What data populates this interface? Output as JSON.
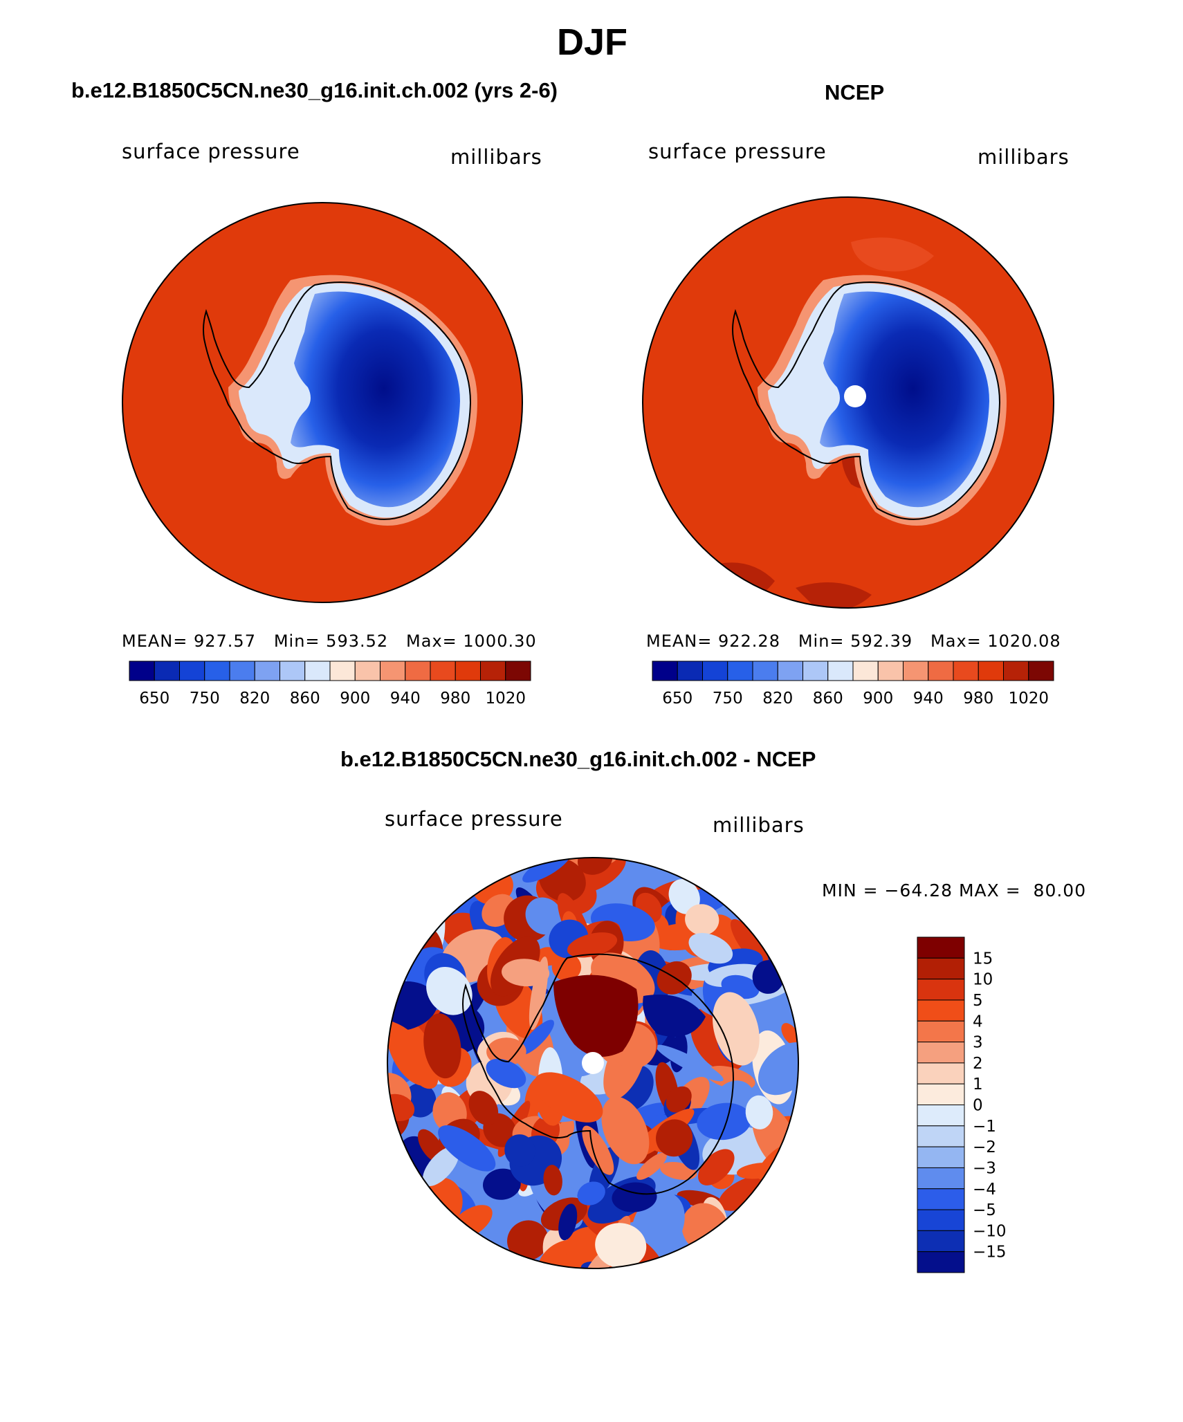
{
  "page_title": "DJF",
  "colors": {
    "ocean_high": "#E03A0B",
    "land_deep": "#000E8A",
    "outline": "#000000",
    "background": "#FFFFFF"
  },
  "chart_data": [
    {
      "type": "heatmap",
      "projection": "south-polar-stereographic",
      "title": "b.e12.B1850C5CN.ne30_g16.init.ch.002 (yrs 2-6)",
      "left_label": "surface pressure",
      "right_label": "millibars",
      "stats_text": "MEAN= 927.57   Min= 593.52   Max= 1000.30",
      "mean": 927.57,
      "min": 593.52,
      "max": 1000.3,
      "units": "millibars",
      "colorbar": {
        "orientation": "horizontal",
        "colors": [
          "#00008A",
          "#0A2AB4",
          "#1443D6",
          "#2760E8",
          "#4B7DEE",
          "#7EA2F2",
          "#ADC7F7",
          "#DAE8FB",
          "#FCE7D8",
          "#F9C3AA",
          "#F59572",
          "#EF6B43",
          "#E84A1E",
          "#E03A0B",
          "#B62207",
          "#7C0703"
        ],
        "tick_labels": [
          "650",
          "750",
          "820",
          "860",
          "900",
          "940",
          "980",
          "1020"
        ]
      }
    },
    {
      "type": "heatmap",
      "projection": "south-polar-stereographic",
      "title": "NCEP",
      "left_label": "surface pressure",
      "right_label": "millibars",
      "stats_text": "MEAN= 922.28   Min= 592.39   Max= 1020.08",
      "mean": 922.28,
      "min": 592.39,
      "max": 1020.08,
      "units": "millibars",
      "colorbar": {
        "orientation": "horizontal",
        "colors": [
          "#00008A",
          "#0A2AB4",
          "#1443D6",
          "#2760E8",
          "#4B7DEE",
          "#7EA2F2",
          "#ADC7F7",
          "#DAE8FB",
          "#FCE7D8",
          "#F9C3AA",
          "#F59572",
          "#EF6B43",
          "#E84A1E",
          "#E03A0B",
          "#B62207",
          "#7C0703"
        ],
        "tick_labels": [
          "650",
          "750",
          "820",
          "860",
          "900",
          "940",
          "980",
          "1020"
        ]
      }
    },
    {
      "type": "heatmap",
      "projection": "south-polar-stereographic",
      "title": "b.e12.B1850C5CN.ne30_g16.init.ch.002 - NCEP",
      "left_label": "surface pressure",
      "right_label": "millibars",
      "stats_text": "MIN = −64.28 MAX =  80.00",
      "min": -64.28,
      "max": 80.0,
      "units": "millibars",
      "colorbar": {
        "orientation": "vertical",
        "colors": [
          "#7E0000",
          "#B21F05",
          "#D9340F",
          "#F04E18",
          "#F3764A",
          "#F5A07F",
          "#FAD2BC",
          "#FCEBDD",
          "#DDEBFB",
          "#BFD5F6",
          "#94B6F2",
          "#5F8CEE",
          "#2C5DEA",
          "#1845D6",
          "#0D2FB4",
          "#040F8C"
        ],
        "tick_labels": [
          "15",
          "10",
          "5",
          "4",
          "3",
          "2",
          "1",
          "0",
          "−1",
          "−2",
          "−3",
          "−4",
          "−5",
          "−10",
          "−15"
        ]
      }
    }
  ]
}
